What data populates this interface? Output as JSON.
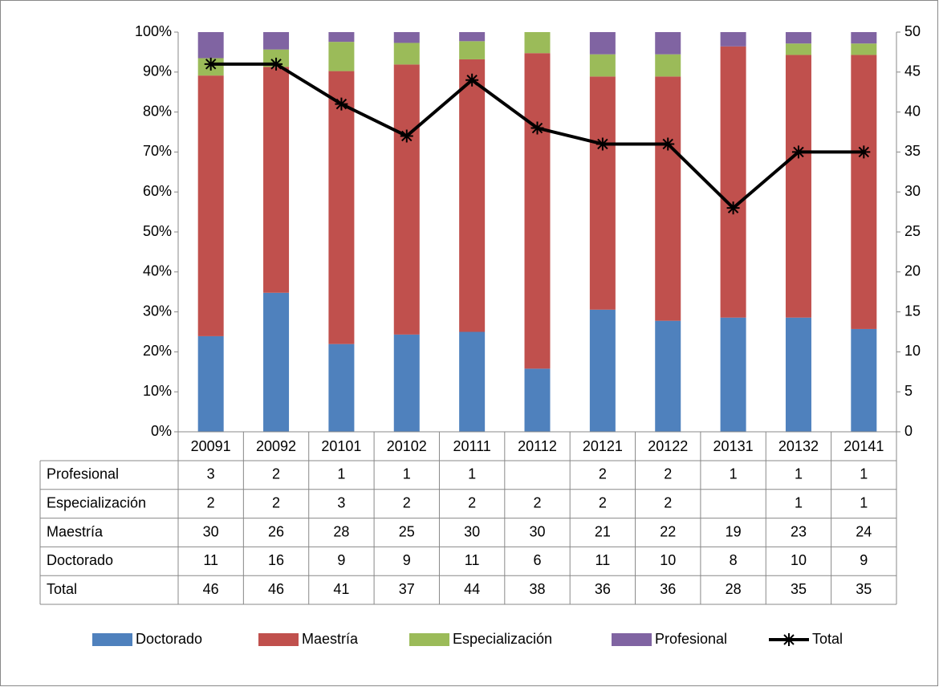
{
  "chart_data": {
    "type": "bar",
    "stacking": "percent",
    "categories": [
      "20091",
      "20092",
      "20101",
      "20102",
      "20111",
      "20112",
      "20121",
      "20122",
      "20131",
      "20132",
      "20141"
    ],
    "series": [
      {
        "name": "Doctorado",
        "color": "#4f81bd",
        "values": [
          11,
          16,
          9,
          9,
          11,
          6,
          11,
          10,
          8,
          10,
          9
        ]
      },
      {
        "name": "Maestría",
        "color": "#c0504d",
        "values": [
          30,
          26,
          28,
          25,
          30,
          30,
          21,
          22,
          19,
          23,
          24
        ]
      },
      {
        "name": "Especialización",
        "color": "#9bbb59",
        "values": [
          2,
          2,
          3,
          2,
          2,
          2,
          2,
          2,
          null,
          1,
          1
        ]
      },
      {
        "name": "Profesional",
        "color": "#8064a2",
        "values": [
          3,
          2,
          1,
          1,
          1,
          null,
          2,
          2,
          1,
          1,
          1
        ]
      },
      {
        "name": "Total",
        "color": "#000000",
        "type": "line",
        "axis": "y2",
        "values": [
          46,
          46,
          41,
          37,
          44,
          38,
          36,
          36,
          28,
          35,
          35
        ]
      }
    ],
    "ylim": [
      0,
      100
    ],
    "yticks": [
      {
        "value": 0,
        "label": "0%"
      },
      {
        "value": 10,
        "label": "10%"
      },
      {
        "value": 20,
        "label": "20%"
      },
      {
        "value": 30,
        "label": "30%"
      },
      {
        "value": 40,
        "label": "40%"
      },
      {
        "value": 50,
        "label": "50%"
      },
      {
        "value": 60,
        "label": "60%"
      },
      {
        "value": 70,
        "label": "70%"
      },
      {
        "value": 80,
        "label": "80%"
      },
      {
        "value": 90,
        "label": "90%"
      },
      {
        "value": 100,
        "label": "100%"
      }
    ],
    "y2lim": [
      0,
      50
    ],
    "y2ticks": [
      0,
      5,
      10,
      15,
      20,
      25,
      30,
      35,
      40,
      45,
      50
    ],
    "data_table": true,
    "legend": "bottom"
  }
}
